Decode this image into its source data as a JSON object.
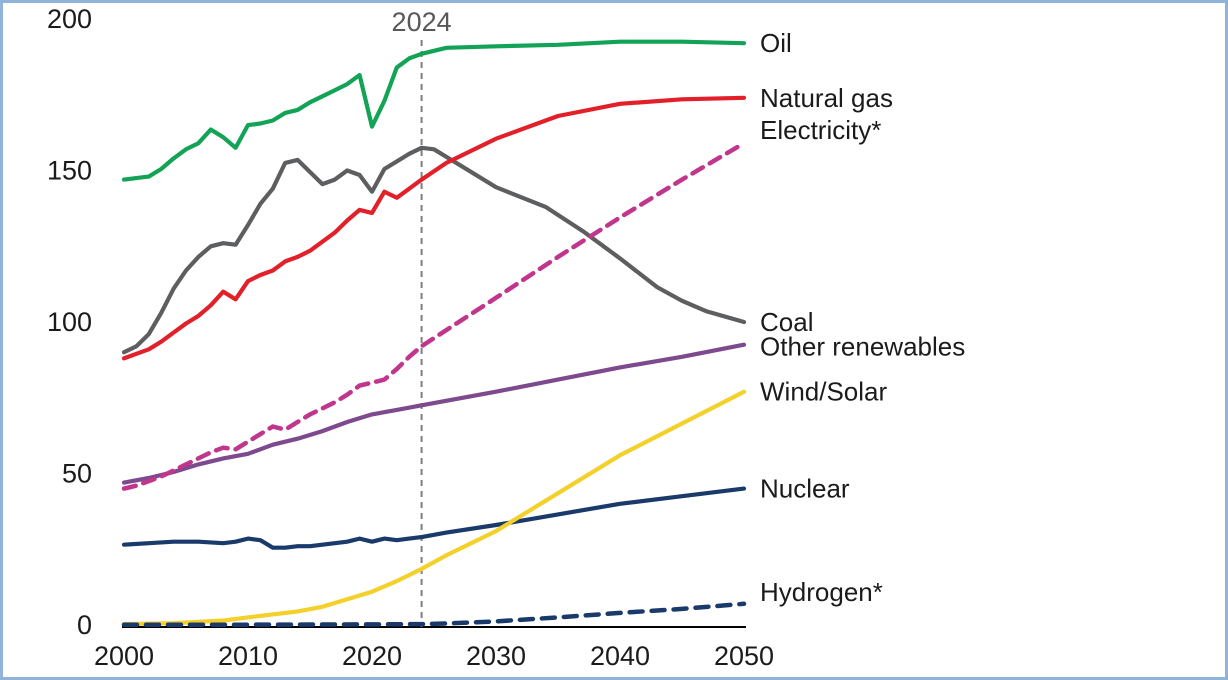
{
  "figure": {
    "background": "#ffffff",
    "border_color": "#8fb3d9"
  },
  "chart_data": {
    "type": "line",
    "title": "",
    "xlabel": "",
    "ylabel": "",
    "xlim": [
      2000,
      2050
    ],
    "ylim": [
      0,
      200
    ],
    "grid": false,
    "legend_position": "right-edge-labels",
    "x_ticks": [
      2000,
      2010,
      2020,
      2030,
      2040,
      2050
    ],
    "y_ticks": [
      0,
      50,
      100,
      150,
      200
    ],
    "annotation": {
      "label": "2024",
      "x": 2024,
      "style": "dashed-vertical-line",
      "line_color": "#7f7f7f",
      "label_color": "#58585a"
    },
    "axis_color": "#000000",
    "tick_label_color": "#1b1b1b",
    "series": [
      {
        "id": "coal",
        "label": "Coal",
        "color": "#5d5e60",
        "dashed": false,
        "points": [
          [
            2000,
            90
          ],
          [
            2001,
            92
          ],
          [
            2002,
            96
          ],
          [
            2003,
            103
          ],
          [
            2004,
            111
          ],
          [
            2005,
            117
          ],
          [
            2006,
            121.5
          ],
          [
            2007,
            125
          ],
          [
            2008,
            126
          ],
          [
            2009,
            125.5
          ],
          [
            2010,
            132
          ],
          [
            2011,
            139
          ],
          [
            2012,
            144
          ],
          [
            2013,
            152.5
          ],
          [
            2014,
            153.5
          ],
          [
            2015,
            149.5
          ],
          [
            2016,
            145.5
          ],
          [
            2017,
            147
          ],
          [
            2018,
            150
          ],
          [
            2019,
            148.5
          ],
          [
            2020,
            143
          ],
          [
            2021,
            150.5
          ],
          [
            2022,
            153
          ],
          [
            2023,
            155.5
          ],
          [
            2024,
            157.5
          ],
          [
            2025,
            157
          ],
          [
            2027,
            152
          ],
          [
            2030,
            144.5
          ],
          [
            2034,
            138
          ],
          [
            2037,
            130
          ],
          [
            2040,
            121
          ],
          [
            2043,
            111.5
          ],
          [
            2045,
            107
          ],
          [
            2047,
            103.5
          ],
          [
            2050,
            100
          ]
        ]
      },
      {
        "id": "oil",
        "label": "Oil",
        "color": "#13a357",
        "dashed": false,
        "points": [
          [
            2000,
            147
          ],
          [
            2001,
            147.5
          ],
          [
            2002,
            148
          ],
          [
            2003,
            150.5
          ],
          [
            2004,
            154
          ],
          [
            2005,
            157
          ],
          [
            2006,
            159
          ],
          [
            2007,
            163.5
          ],
          [
            2008,
            161
          ],
          [
            2009,
            157.5
          ],
          [
            2010,
            165
          ],
          [
            2011,
            165.5
          ],
          [
            2012,
            166.5
          ],
          [
            2013,
            169
          ],
          [
            2014,
            170
          ],
          [
            2015,
            172.5
          ],
          [
            2016,
            174.5
          ],
          [
            2017,
            176.5
          ],
          [
            2018,
            178.5
          ],
          [
            2019,
            181.5
          ],
          [
            2020,
            164.5
          ],
          [
            2021,
            173
          ],
          [
            2022,
            184
          ],
          [
            2023,
            187
          ],
          [
            2024,
            188.5
          ],
          [
            2026,
            190.5
          ],
          [
            2030,
            191
          ],
          [
            2035,
            191.5
          ],
          [
            2040,
            192.5
          ],
          [
            2045,
            192.5
          ],
          [
            2050,
            192
          ]
        ]
      },
      {
        "id": "natural-gas",
        "label": "Natural gas",
        "color": "#e2202a",
        "dashed": false,
        "points": [
          [
            2000,
            88
          ],
          [
            2001,
            89.5
          ],
          [
            2002,
            91
          ],
          [
            2003,
            93.5
          ],
          [
            2004,
            96.5
          ],
          [
            2005,
            99.5
          ],
          [
            2006,
            102
          ],
          [
            2007,
            105.5
          ],
          [
            2008,
            110
          ],
          [
            2009,
            107.5
          ],
          [
            2010,
            113.5
          ],
          [
            2011,
            115.5
          ],
          [
            2012,
            117
          ],
          [
            2013,
            120
          ],
          [
            2014,
            121.5
          ],
          [
            2015,
            123.5
          ],
          [
            2016,
            126.5
          ],
          [
            2017,
            129.5
          ],
          [
            2018,
            133.5
          ],
          [
            2019,
            137
          ],
          [
            2020,
            136
          ],
          [
            2021,
            143
          ],
          [
            2022,
            141
          ],
          [
            2023,
            144
          ],
          [
            2024,
            147
          ],
          [
            2026,
            152.5
          ],
          [
            2030,
            160.5
          ],
          [
            2035,
            168
          ],
          [
            2040,
            172
          ],
          [
            2045,
            173.5
          ],
          [
            2050,
            174
          ]
        ]
      },
      {
        "id": "other-renewables",
        "label": "Other renewables",
        "color": "#7d4a8e",
        "dashed": false,
        "points": [
          [
            2000,
            47
          ],
          [
            2002,
            48.5
          ],
          [
            2004,
            50.5
          ],
          [
            2006,
            53
          ],
          [
            2008,
            55
          ],
          [
            2010,
            56.5
          ],
          [
            2012,
            59.5
          ],
          [
            2014,
            61.5
          ],
          [
            2016,
            64
          ],
          [
            2018,
            67
          ],
          [
            2020,
            69.5
          ],
          [
            2022,
            71
          ],
          [
            2024,
            72.5
          ],
          [
            2030,
            77
          ],
          [
            2035,
            81
          ],
          [
            2040,
            85
          ],
          [
            2045,
            88.5
          ],
          [
            2050,
            92.5
          ]
        ]
      },
      {
        "id": "electricity",
        "label": "Electricity*",
        "color": "#c0368c",
        "dashed": true,
        "points": [
          [
            2000,
            45
          ],
          [
            2001,
            46
          ],
          [
            2002,
            47.5
          ],
          [
            2003,
            49
          ],
          [
            2004,
            51
          ],
          [
            2005,
            53
          ],
          [
            2006,
            55
          ],
          [
            2007,
            57
          ],
          [
            2008,
            58.5
          ],
          [
            2009,
            58
          ],
          [
            2010,
            60.5
          ],
          [
            2011,
            63
          ],
          [
            2012,
            65.5
          ],
          [
            2013,
            64.5
          ],
          [
            2014,
            67
          ],
          [
            2015,
            69.5
          ],
          [
            2016,
            71.5
          ],
          [
            2017,
            73.5
          ],
          [
            2018,
            76
          ],
          [
            2019,
            79
          ],
          [
            2020,
            80
          ],
          [
            2021,
            81
          ],
          [
            2022,
            84.5
          ],
          [
            2023,
            88.5
          ],
          [
            2024,
            92
          ],
          [
            2030,
            108
          ],
          [
            2035,
            121.5
          ],
          [
            2040,
            134.5
          ],
          [
            2045,
            147
          ],
          [
            2050,
            159
          ]
        ]
      },
      {
        "id": "nuclear",
        "label": "Nuclear",
        "color": "#1a3a6b",
        "dashed": false,
        "points": [
          [
            2000,
            26.5
          ],
          [
            2002,
            27
          ],
          [
            2004,
            27.5
          ],
          [
            2006,
            27.5
          ],
          [
            2008,
            27
          ],
          [
            2009,
            27.5
          ],
          [
            2010,
            28.5
          ],
          [
            2011,
            28
          ],
          [
            2012,
            25.5
          ],
          [
            2013,
            25.5
          ],
          [
            2014,
            26
          ],
          [
            2015,
            26
          ],
          [
            2016,
            26.5
          ],
          [
            2017,
            27
          ],
          [
            2018,
            27.5
          ],
          [
            2019,
            28.5
          ],
          [
            2020,
            27.5
          ],
          [
            2021,
            28.5
          ],
          [
            2022,
            28
          ],
          [
            2023,
            28.5
          ],
          [
            2024,
            29
          ],
          [
            2026,
            30.5
          ],
          [
            2030,
            33
          ],
          [
            2035,
            36.5
          ],
          [
            2040,
            40
          ],
          [
            2045,
            42.5
          ],
          [
            2050,
            45
          ]
        ]
      },
      {
        "id": "wind-solar",
        "label": "Wind/Solar",
        "color": "#f4d02a",
        "dashed": false,
        "points": [
          [
            2000,
            0.3
          ],
          [
            2004,
            0.6
          ],
          [
            2008,
            1.5
          ],
          [
            2010,
            2.5
          ],
          [
            2012,
            3.5
          ],
          [
            2014,
            4.5
          ],
          [
            2016,
            6
          ],
          [
            2018,
            8.5
          ],
          [
            2020,
            11
          ],
          [
            2022,
            14.5
          ],
          [
            2024,
            18.5
          ],
          [
            2026,
            23
          ],
          [
            2030,
            31
          ],
          [
            2035,
            43.5
          ],
          [
            2040,
            56
          ],
          [
            2045,
            66.5
          ],
          [
            2050,
            77
          ]
        ]
      },
      {
        "id": "hydrogen",
        "label": "Hydrogen*",
        "color": "#1a3a6b",
        "dashed": true,
        "points": [
          [
            2000,
            0.1
          ],
          [
            2010,
            0.1
          ],
          [
            2020,
            0.2
          ],
          [
            2024,
            0.3
          ],
          [
            2026,
            0.5
          ],
          [
            2030,
            1.2
          ],
          [
            2035,
            2.5
          ],
          [
            2040,
            4
          ],
          [
            2045,
            5.3
          ],
          [
            2050,
            7
          ]
        ]
      }
    ]
  }
}
